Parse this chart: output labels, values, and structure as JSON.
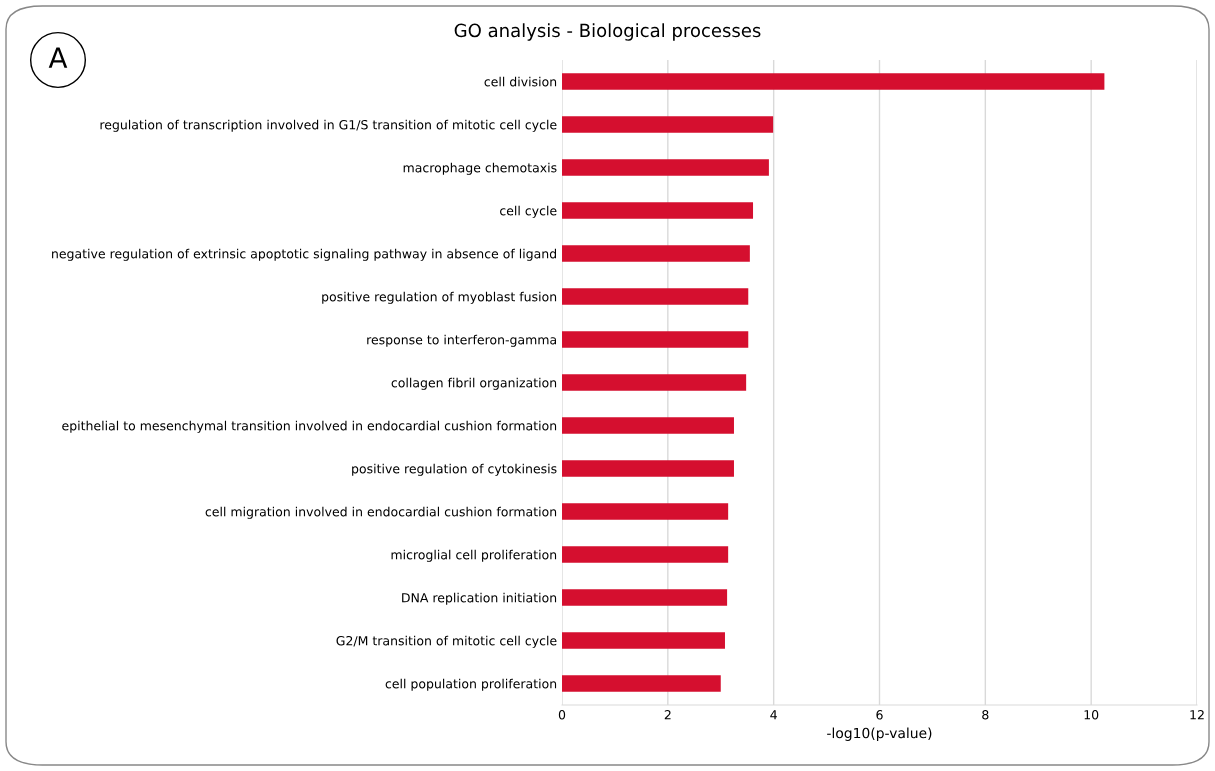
{
  "chart_data": {
    "type": "bar",
    "orientation": "horizontal",
    "title": "GO analysis - Biological processes",
    "xlabel": "-log10(p-value)",
    "categories": [
      "cell division",
      "regulation of transcription involved in G1/S transition of mitotic cell cycle",
      "macrophage chemotaxis",
      "cell cycle",
      "negative regulation of extrinsic apoptotic signaling pathway in absence of ligand",
      "positive regulation of myoblast fusion",
      "response to interferon-gamma",
      "collagen fibril organization",
      "epithelial to mesenchymal transition involved in endocardial cushion formation",
      "positive regulation of cytokinesis",
      "cell migration involved in endocardial cushion formation",
      "microglial cell proliferation",
      "DNA replication initiation",
      "G2/M transition of mitotic cell cycle",
      "cell population proliferation"
    ],
    "values": [
      10.25,
      3.99,
      3.91,
      3.61,
      3.55,
      3.52,
      3.52,
      3.48,
      3.25,
      3.25,
      3.14,
      3.14,
      3.12,
      3.08,
      3.0
    ],
    "color": "#d50f2f",
    "xlim": [
      0,
      12
    ],
    "xticks": [
      0,
      2,
      4,
      6,
      8,
      10,
      12
    ],
    "grid": "x",
    "annotations": [
      "A"
    ]
  }
}
